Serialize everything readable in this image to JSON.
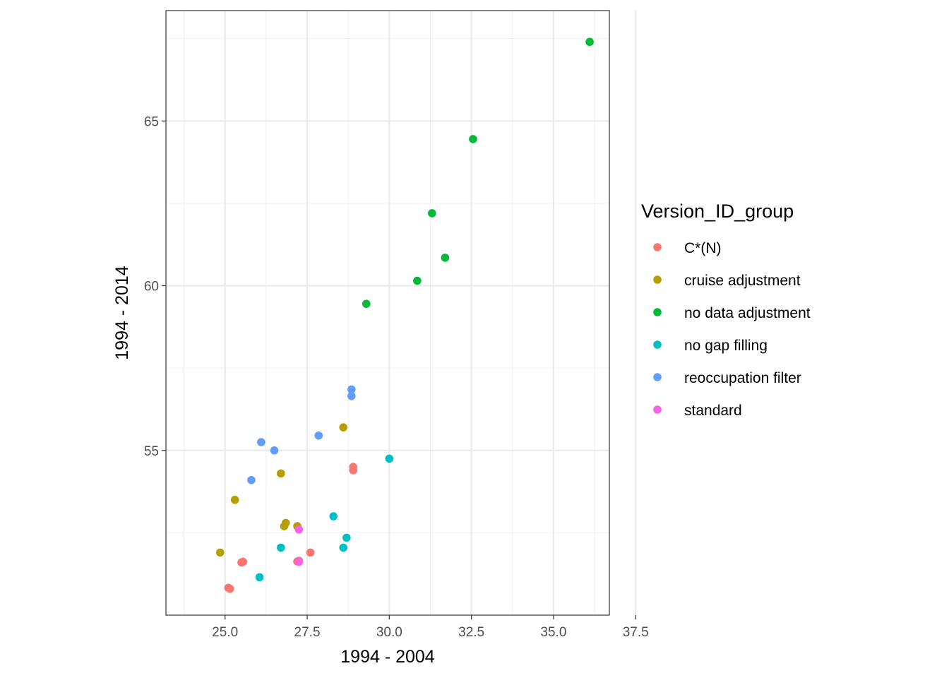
{
  "chart_data": {
    "type": "scatter",
    "title": "",
    "xlabel": "1994 - 2004",
    "ylabel": "1994 - 2014",
    "xlim": [
      23.2,
      36.7
    ],
    "ylim": [
      50.0,
      68.35
    ],
    "x_ticks": [
      25.0,
      27.5,
      30.0,
      32.5,
      35.0,
      37.5
    ],
    "x_tick_labels": [
      "25.0",
      "27.5",
      "30.0",
      "32.5",
      "35.0",
      "37.5"
    ],
    "y_ticks": [
      55,
      60,
      65
    ],
    "y_tick_labels": [
      "55",
      "60",
      "65"
    ],
    "grid": true,
    "legend": {
      "title": "Version_ID_group",
      "placement": "right"
    },
    "series": [
      {
        "name": "C*(N)",
        "color": "#F8766D",
        "points": [
          [
            25.1,
            50.83
          ],
          [
            25.15,
            50.8
          ],
          [
            25.5,
            51.6
          ],
          [
            25.55,
            51.62
          ],
          [
            27.2,
            51.63
          ],
          [
            27.25,
            51.65
          ],
          [
            27.6,
            51.9
          ],
          [
            28.9,
            54.5
          ],
          [
            28.9,
            54.4
          ],
          [
            27.2,
            52.7
          ]
        ]
      },
      {
        "name": "cruise adjustment",
        "color": "#B79F00",
        "points": [
          [
            24.85,
            51.9
          ],
          [
            25.3,
            53.5
          ],
          [
            26.7,
            54.3
          ],
          [
            26.8,
            52.7
          ],
          [
            26.85,
            52.8
          ],
          [
            27.2,
            52.7
          ],
          [
            28.6,
            55.7
          ]
        ]
      },
      {
        "name": "no data adjustment",
        "color": "#00BA38",
        "points": [
          [
            29.3,
            59.45
          ],
          [
            30.85,
            60.15
          ],
          [
            31.3,
            62.2
          ],
          [
            31.7,
            60.85
          ],
          [
            32.55,
            64.45
          ],
          [
            36.1,
            67.4
          ]
        ]
      },
      {
        "name": "no gap filling",
        "color": "#00BFC4",
        "points": [
          [
            26.05,
            51.15
          ],
          [
            26.7,
            52.05
          ],
          [
            28.3,
            53.0
          ],
          [
            28.6,
            52.05
          ],
          [
            28.7,
            52.35
          ],
          [
            30.0,
            54.75
          ]
        ]
      },
      {
        "name": "reoccupation filter",
        "color": "#619CFF",
        "points": [
          [
            25.8,
            54.1
          ],
          [
            26.1,
            55.25
          ],
          [
            26.5,
            55.0
          ],
          [
            27.85,
            55.45
          ],
          [
            28.85,
            56.85
          ],
          [
            28.85,
            56.65
          ]
        ]
      },
      {
        "name": "standard",
        "color": "#F564E3",
        "points": [
          [
            27.25,
            52.6
          ],
          [
            27.25,
            51.62
          ]
        ]
      }
    ]
  }
}
